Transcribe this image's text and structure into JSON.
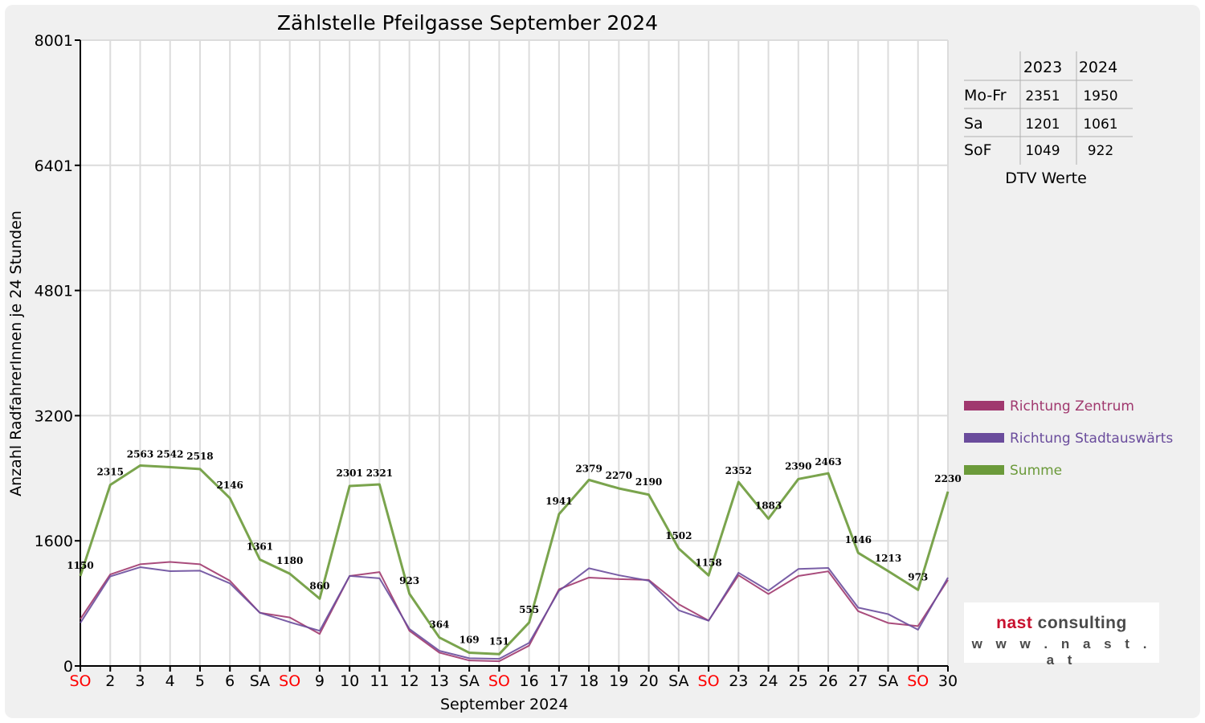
{
  "chart_data": {
    "type": "line",
    "title": "Zählstelle Pfeilgasse September 2024",
    "xlabel": "September 2024",
    "ylabel": "Anzahl RadfahrerInnen je 24 Stunden",
    "ylim": [
      0,
      8001
    ],
    "yticks": [
      "0",
      "1600",
      "3200",
      "4801",
      "6401",
      "8001"
    ],
    "grid": true,
    "legend_position": "right",
    "categories": [
      "SO",
      "2",
      "3",
      "4",
      "5",
      "6",
      "SA",
      "SO",
      "9",
      "10",
      "11",
      "12",
      "13",
      "SA",
      "SO",
      "16",
      "17",
      "18",
      "19",
      "20",
      "SA",
      "SO",
      "23",
      "24",
      "25",
      "26",
      "27",
      "SA",
      "SO",
      "30"
    ],
    "red_categories": [
      0,
      7,
      14,
      21,
      28
    ],
    "series": [
      {
        "name": "Richtung Zentrum",
        "color": "#a0386e",
        "values": [
          600,
          1170,
          1300,
          1330,
          1300,
          1090,
          680,
          620,
          410,
          1150,
          1200,
          450,
          170,
          70,
          60,
          260,
          980,
          1130,
          1110,
          1100,
          790,
          580,
          1160,
          920,
          1150,
          1210,
          700,
          550,
          510,
          1100
        ]
      },
      {
        "name": "Richtung Stadtauswärts",
        "color": "#6a4c9c",
        "values": [
          550,
          1145,
          1263,
          1212,
          1218,
          1056,
          681,
          560,
          450,
          1151,
          1121,
          473,
          194,
          99,
          91,
          295,
          961,
          1249,
          1160,
          1090,
          712,
          578,
          1192,
          963,
          1240,
          1253,
          746,
          663,
          463,
          1130
        ]
      },
      {
        "name": "Summe",
        "color": "#6b9a3a",
        "values": [
          1150,
          2315,
          2563,
          2542,
          2518,
          2146,
          1361,
          1180,
          860,
          2301,
          2321,
          923,
          364,
          169,
          151,
          555,
          1941,
          2379,
          2270,
          2190,
          1502,
          1158,
          2352,
          1883,
          2390,
          2463,
          1446,
          1213,
          973,
          2230
        ]
      }
    ]
  },
  "dtv_table": {
    "headers": [
      "",
      "2023",
      "2024"
    ],
    "rows": [
      {
        "label": "Mo-Fr",
        "v2023": "2351",
        "v2024": "1950"
      },
      {
        "label": "Sa",
        "v2023": "1201",
        "v2024": "1061"
      },
      {
        "label": "SoF",
        "v2023": "1049",
        "v2024": "922"
      }
    ],
    "caption": "DTV Werte"
  },
  "logo": {
    "part1": "nast",
    "part2": "consulting",
    "url": "w w w . n a s t . a t"
  }
}
